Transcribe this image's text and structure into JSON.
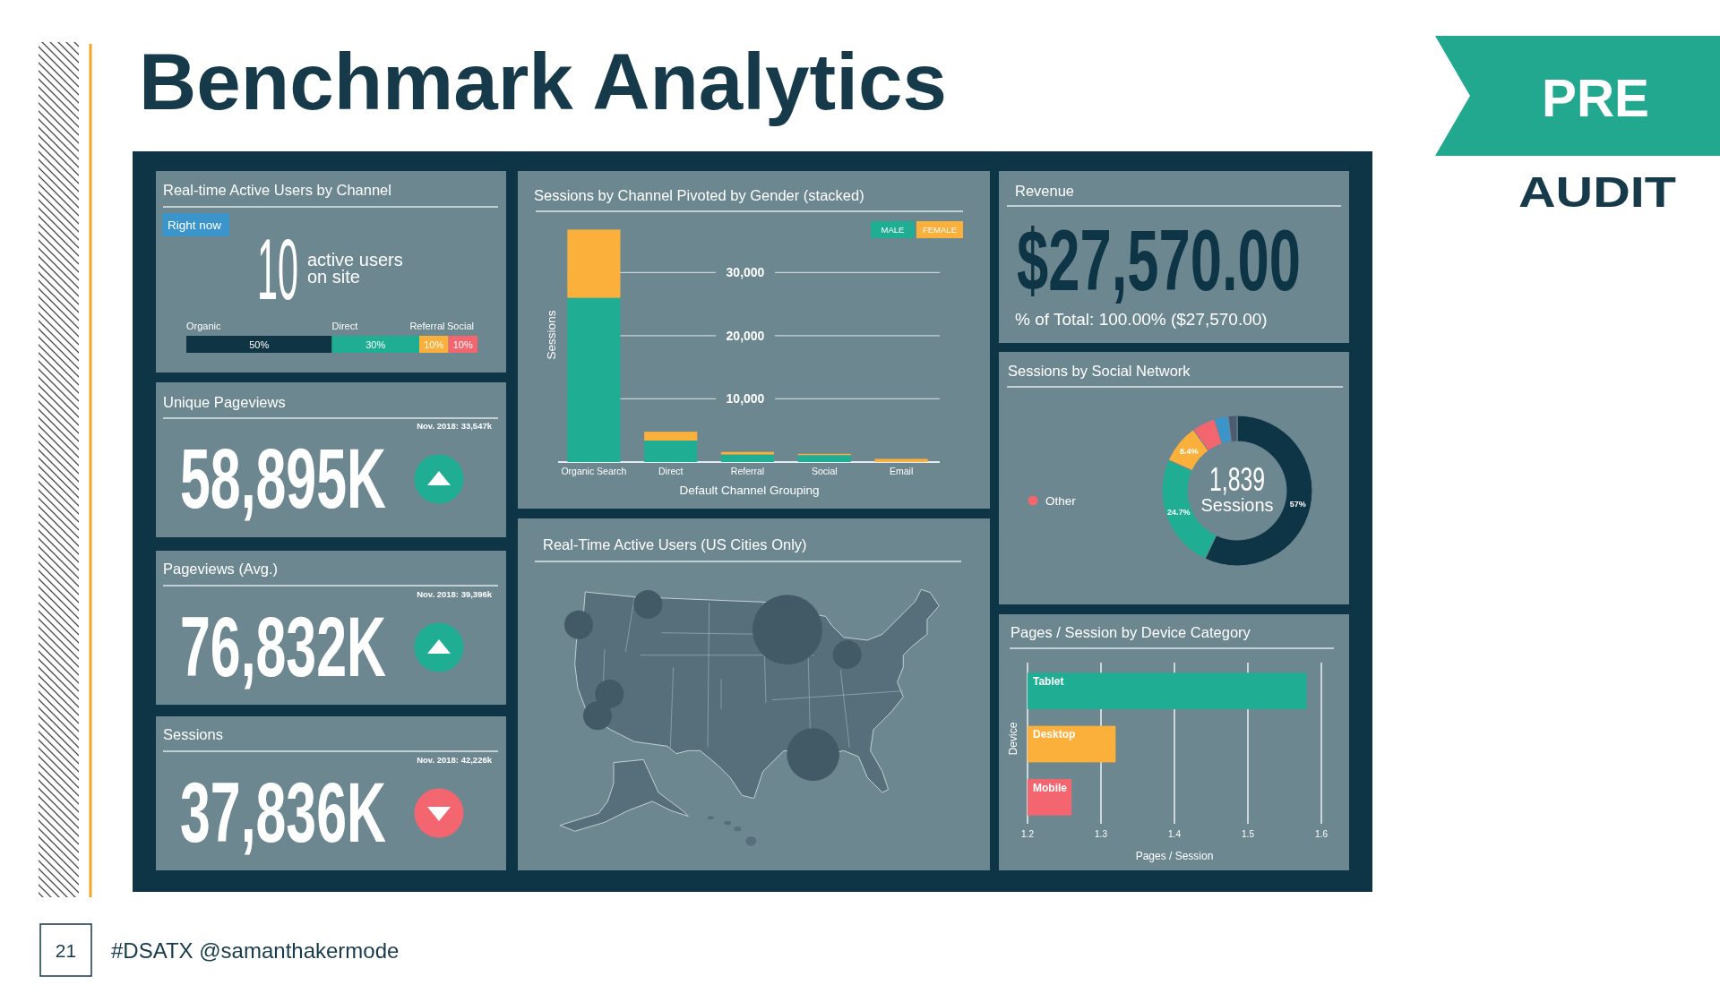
{
  "chart_data": [
    {
      "type": "other",
      "title": "Benchmark Analytics",
      "annotations": [
        "PRE",
        "AUDIT",
        "21",
        "#DSATX @samanthakermode"
      ]
    },
    {
      "type": "bar",
      "title": "Real-time Active Users by Channel",
      "orientation": "horizontal",
      "stacked": true,
      "categories": [
        null
      ],
      "series": [
        {
          "name": "Organic",
          "color": "#0f3444",
          "values": [
            50
          ],
          "value_labels": [
            "50%"
          ]
        },
        {
          "name": "Direct",
          "color": "#1fae94",
          "values": [
            30
          ],
          "value_labels": [
            "30%"
          ]
        },
        {
          "name": "Referral",
          "color": "#fbb03b",
          "values": [
            10
          ],
          "value_labels": [
            "10%"
          ]
        },
        {
          "name": "Social",
          "color": "#f4666f",
          "values": [
            10
          ],
          "value_labels": [
            "10%"
          ]
        }
      ],
      "annotations": [
        "Right now",
        "10",
        "active users on site"
      ]
    },
    {
      "type": "other",
      "title": "Unique Pageviews",
      "annotations": [
        "Nov. 2018: 33,547k",
        "58,895K"
      ]
    },
    {
      "type": "other",
      "title": "Pageviews (Avg.)",
      "annotations": [
        "Nov. 2018: 39,396k",
        "76,832K"
      ]
    },
    {
      "type": "other",
      "title": "Sessions",
      "annotations": [
        "Nov. 2018: 42,226k",
        "37,836K"
      ]
    },
    {
      "type": "bar",
      "title": "Sessions by Channel Pivoted by Gender (stacked)",
      "categories": [
        "Organic Search",
        "Direct",
        "Referral",
        "Social",
        "Email"
      ],
      "stacked": true,
      "series": [
        {
          "name": "MALE",
          "color": "#1fae94",
          "values": [
            26000,
            3400,
            1200,
            1100,
            null
          ]
        },
        {
          "name": "FEMALE",
          "color": "#fbb03b",
          "values": [
            10800,
            1400,
            400,
            200,
            500
          ]
        }
      ],
      "ylim": [
        0,
        37000
      ],
      "yticks": [
        {
          "value": 10000,
          "label": "10,000"
        },
        {
          "value": 20000,
          "label": "20,000"
        },
        {
          "value": 30000,
          "label": "30,000"
        }
      ],
      "xlabel": "Default Channel Grouping",
      "ylabel": "Sessions",
      "grid": "y",
      "legend": "top right"
    },
    {
      "type": "other",
      "title": "Real-Time Active Users (US Cities Only)"
    },
    {
      "type": "other",
      "title": "Revenue",
      "annotations": [
        "$27,570.00",
        "% of Total: 100.00% ($27,570.00)"
      ]
    },
    {
      "type": "donut",
      "title": "Sessions by Social Network",
      "categories": [
        null,
        null,
        null,
        "Other",
        null,
        null
      ],
      "values": [
        57,
        24.7,
        8.4,
        5,
        3,
        1.9
      ],
      "colors": [
        "#0e3545",
        "#1fae94",
        "#fbb03b",
        "#f4666f",
        "#3b95cb",
        "#4c5b70"
      ],
      "value_labels": [
        "57%",
        "24.7%",
        "8.4%",
        null,
        null,
        null
      ],
      "legend": "left",
      "annotations": [
        "1,839",
        "Sessions"
      ]
    },
    {
      "type": "bar",
      "title": "Pages / Session by Device Category",
      "orientation": "horizontal",
      "categories": [
        "Tablet",
        "Desktop",
        "Mobile"
      ],
      "values": [
        1.58,
        1.32,
        1.26
      ],
      "colors": [
        "#1fae94",
        "#fbb03b",
        "#f4666f"
      ],
      "xlim": [
        1.2,
        1.6
      ],
      "xticks": [
        1.2,
        1.3,
        1.4,
        1.5,
        1.6
      ],
      "xlabel": "Pages / Session",
      "ylabel": "Device",
      "grid": "x"
    }
  ]
}
